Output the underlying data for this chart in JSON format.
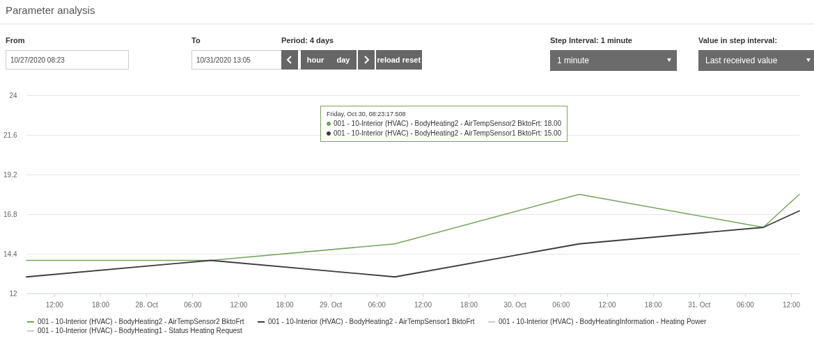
{
  "chart_data": {
    "type": "line",
    "title": "Parameter analysis",
    "x": [
      "2020-10-27T08:23",
      "2020-10-28T08:23",
      "2020-10-29T08:23",
      "2020-10-30T08:23",
      "2020-10-31T08:23",
      "2020-10-31T13:05"
    ],
    "series": [
      {
        "name": "001 - 10-Interior (HVAC) - BodyHeating2 - AirTempSensor2 BktoFrt",
        "color": "#76a35a",
        "values": [
          14.0,
          14.0,
          15.0,
          18.0,
          16.0,
          18.0
        ]
      },
      {
        "name": "001 - 10-Interior (HVAC) - BodyHeating2 - AirTempSensor1 BktoFrt",
        "color": "#3c3c3c",
        "values": [
          13.0,
          14.0,
          13.0,
          15.0,
          16.0,
          17.0
        ]
      },
      {
        "name": "001 - 10-Interior (HVAC) - BodyHeatingInformation - Heating Power",
        "color": "#cccccc",
        "values": [
          null,
          null,
          null,
          null,
          null,
          null
        ]
      },
      {
        "name": "001 - 10-Interior (HVAC) - BodyHeating1 - Status Heating Request",
        "color": "#cccccc",
        "values": [
          null,
          null,
          null,
          null,
          null,
          null
        ]
      }
    ],
    "xlim": [
      "2020-10-27T08:23",
      "2020-10-31T13:05"
    ],
    "xticks": [
      {
        "value": "2020-10-27T12:00",
        "label": "12:00"
      },
      {
        "value": "2020-10-27T18:00",
        "label": "18:00"
      },
      {
        "value": "2020-10-28T00:00",
        "label": "28. Oct"
      },
      {
        "value": "2020-10-28T06:00",
        "label": "06:00"
      },
      {
        "value": "2020-10-28T12:00",
        "label": "12:00"
      },
      {
        "value": "2020-10-28T18:00",
        "label": "18:00"
      },
      {
        "value": "2020-10-29T00:00",
        "label": "29. Oct"
      },
      {
        "value": "2020-10-29T06:00",
        "label": "06:00"
      },
      {
        "value": "2020-10-29T12:00",
        "label": "12:00"
      },
      {
        "value": "2020-10-29T18:00",
        "label": "18:00"
      },
      {
        "value": "2020-10-30T00:00",
        "label": "30. Oct"
      },
      {
        "value": "2020-10-30T06:00",
        "label": "06:00"
      },
      {
        "value": "2020-10-30T12:00",
        "label": "12:00"
      },
      {
        "value": "2020-10-30T18:00",
        "label": "18:00"
      },
      {
        "value": "2020-10-31T00:00",
        "label": "31. Oct"
      },
      {
        "value": "2020-10-31T06:00",
        "label": "06:00"
      },
      {
        "value": "2020-10-31T12:00",
        "label": "12:00"
      }
    ],
    "ylim": [
      12,
      24
    ],
    "yticks": [
      12,
      14.4,
      16.8,
      19.2,
      21.6,
      24
    ],
    "grid": "y",
    "legend": "bottom",
    "marker": "none",
    "line_style": "solid",
    "annotations": [
      "From",
      "10/27/2020 08:23",
      "To",
      "10/31/2020 13:05",
      "Period: 4 days",
      "hour",
      "day",
      "reload",
      "reset",
      "Step Interval: 1 minute",
      "1 minute",
      "Value in step interval:",
      "Last received value",
      "Friday, Oct 30, 08:23:17.508",
      "001 - 10-Interior (HVAC) - BodyHeating2 - AirTempSensor2 BktoFrt: 18.00",
      "001 - 10-Interior (HVAC) - BodyHeating2 - AirTempSensor1 BktoFrt: 15.00"
    ]
  }
}
